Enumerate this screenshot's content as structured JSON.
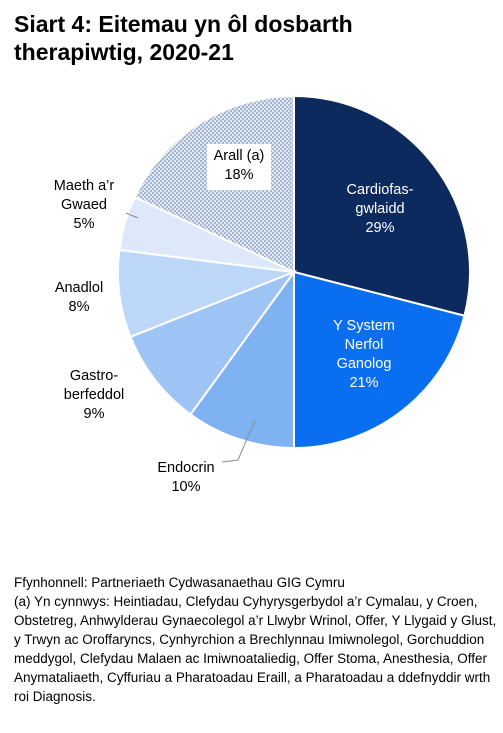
{
  "title_lines": [
    "Siart 4: Eitemau yn ôl dosbarth",
    "therapiwtig, 2020-21"
  ],
  "chart_data": {
    "type": "pie",
    "title": "Siart 4: Eitemau yn ôl dosbarth therapiwtig, 2020-21",
    "slices": [
      {
        "label_lines": [
          "Cardiofas-",
          "gwlaidd"
        ],
        "label": "Cardiofasgwlaidd",
        "value": 29,
        "value_label": "29%",
        "color": "#0d2a5e",
        "text_color": "#ffffff"
      },
      {
        "label_lines": [
          "Y System",
          "Nerfol",
          "Ganolog"
        ],
        "label": "Y System Nerfol Ganolog",
        "value": 21,
        "value_label": "21%",
        "color": "#0a6ef0",
        "text_color": "#ffffff"
      },
      {
        "label_lines": [
          "Endocrin"
        ],
        "label": "Endocrin",
        "value": 10,
        "value_label": "10%",
        "color": "#7eb2f2",
        "text_color": "#000000"
      },
      {
        "label_lines": [
          "Gastro-",
          "berfeddol"
        ],
        "label": "Gastro-berfeddol",
        "value": 9,
        "value_label": "9%",
        "color": "#9dc4f5",
        "text_color": "#000000"
      },
      {
        "label_lines": [
          "Anadlol"
        ],
        "label": "Anadlol",
        "value": 8,
        "value_label": "8%",
        "color": "#bcd7f8",
        "text_color": "#000000"
      },
      {
        "label_lines": [
          "Maeth a’r",
          "Gwaed"
        ],
        "label": "Maeth a’r Gwaed",
        "value": 5,
        "value_label": "5%",
        "color": "#dde9fb",
        "text_color": "#000000"
      },
      {
        "label_lines": [
          "Arall (a)"
        ],
        "label": "Arall (a)",
        "value": 18,
        "value_label": "18%",
        "color": "#c9d5e8",
        "pattern": "dots",
        "text_color": "#000000"
      }
    ]
  },
  "source": "Ffynhonnell: Partneriaeth Cydwasanaethau GIG Cymru",
  "footnote": "(a) Yn cynnwys: Heintiadau, Clefydau Cyhyrysgerbydol a’r Cymalau, y Croen, Obstetreg, Anhwylderau Gynaecolegol a’r Llwybr Wrinol, Offer, Y Llygaid y Glust, y Trwyn ac Oroffaryncs, Cynhyrchion a Brechlynnau Imiwnolegol, Gorchuddion meddygol, Clefydau Malaen ac Imiwnoataliedig, Offer Stoma, Anesthesia, Offer Anymataliaeth, Cyffuriau a Pharatoadau Eraill, a Pharatoadau a ddefnyddir wrth roi Diagnosis."
}
